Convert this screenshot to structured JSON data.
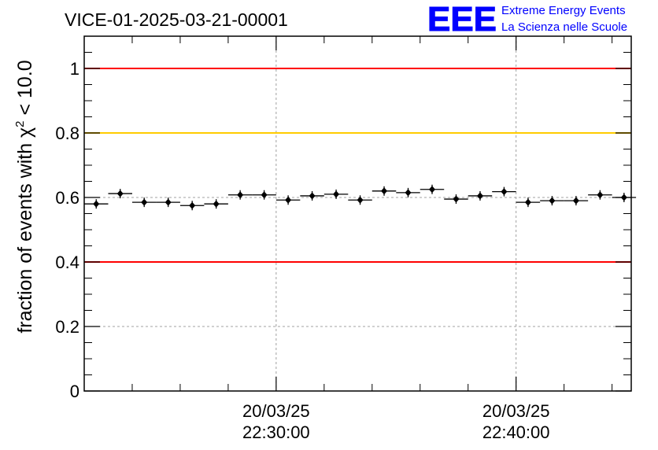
{
  "chart_data": {
    "type": "scatter",
    "title": "VICE-01-2025-03-21-00001",
    "ylabel": "fraction of events with χ² < 10.0",
    "ylim": [
      0,
      1.1
    ],
    "yticks": [
      {
        "value": 0,
        "label": "0"
      },
      {
        "value": 0.2,
        "label": "0.2"
      },
      {
        "value": 0.4,
        "label": "0.4"
      },
      {
        "value": 0.6,
        "label": "0.6"
      },
      {
        "value": 0.8,
        "label": "0.8"
      },
      {
        "value": 1.0,
        "label": "1"
      }
    ],
    "xrange_minutes": [
      0,
      22.8
    ],
    "xticks": [
      {
        "value": 8,
        "date": "20/03/25",
        "time": "22:30:00"
      },
      {
        "value": 18,
        "date": "20/03/25",
        "time": "22:40:00"
      }
    ],
    "bin_width_minutes": 1,
    "x": [
      0.5,
      1.5,
      2.5,
      3.5,
      4.5,
      5.5,
      6.5,
      7.5,
      8.5,
      9.5,
      10.5,
      11.5,
      12.5,
      13.5,
      14.5,
      15.5,
      16.5,
      17.5,
      18.5,
      19.5,
      20.5,
      21.5,
      22.5
    ],
    "values": [
      0.58,
      0.612,
      0.585,
      0.585,
      0.575,
      0.58,
      0.608,
      0.608,
      0.592,
      0.605,
      0.61,
      0.592,
      0.62,
      0.615,
      0.625,
      0.595,
      0.605,
      0.618,
      0.585,
      0.59,
      0.59,
      0.608,
      0.6
    ],
    "reference_lines": [
      {
        "value": 1.0,
        "color": "#ff0000"
      },
      {
        "value": 0.8,
        "color": "#ffcc00"
      },
      {
        "value": 0.4,
        "color": "#ff0000"
      }
    ],
    "grid": true,
    "grid_color": "#a0a0a0",
    "marker_color": "#000000"
  },
  "logo": {
    "mark": "EEE",
    "line1": "Extreme Energy Events",
    "line2": "La Scienza nelle Scuole",
    "color": "#0000ff"
  }
}
